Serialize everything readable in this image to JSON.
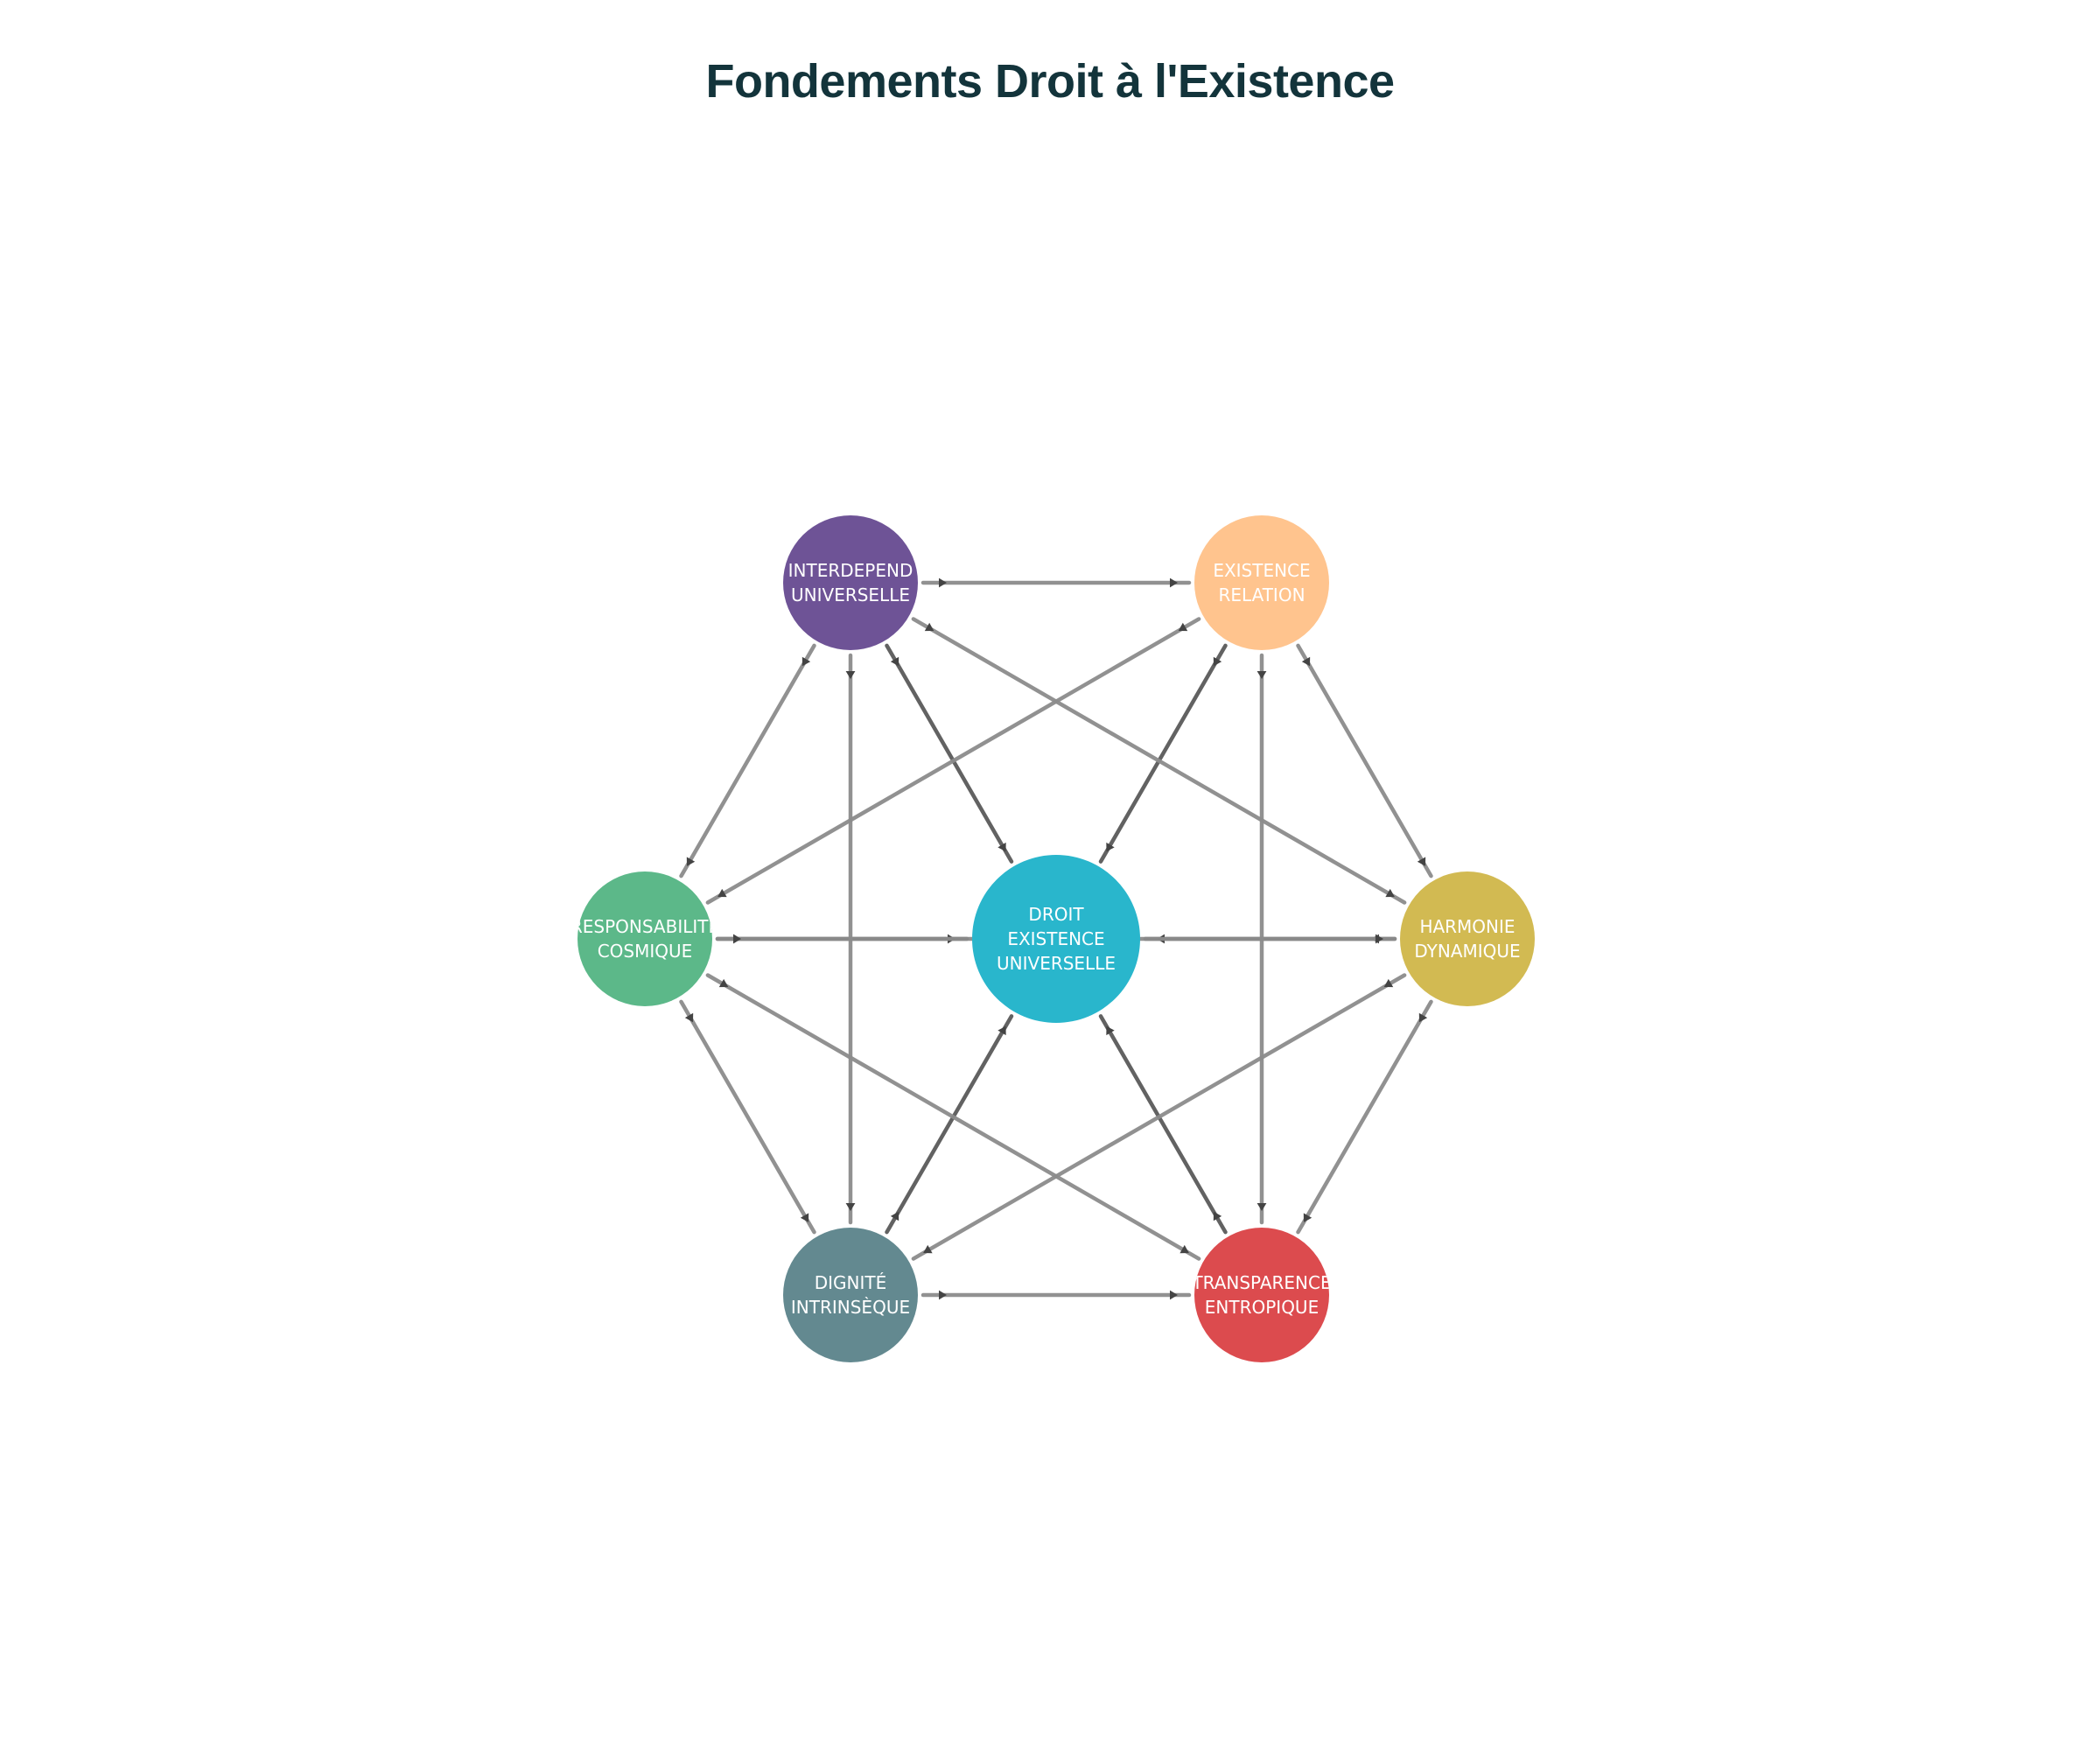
{
  "title": "Fondements Droit à l'Existence",
  "center": {
    "id": "center",
    "lines": [
      "DROIT",
      "EXISTENCE",
      "UNIVERSELLE"
    ],
    "color": "#29b6cc"
  },
  "nodes": [
    {
      "id": "interdep",
      "lines": [
        "INTERDEPEND",
        "UNIVERSELLE"
      ],
      "color": "#6e5396"
    },
    {
      "id": "existence",
      "lines": [
        "EXISTENCE",
        "RELATION"
      ],
      "color": "#ffc48e"
    },
    {
      "id": "harmonie",
      "lines": [
        "HARMONIE",
        "DYNAMIQUE"
      ],
      "color": "#d2ba52"
    },
    {
      "id": "transparence",
      "lines": [
        "TRANSPARENCE",
        "ENTROPIQUE"
      ],
      "color": "#dc4b4e"
    },
    {
      "id": "dignite",
      "lines": [
        "DIGNITÉ",
        "INTRINSÈQUE"
      ],
      "color": "#638990"
    },
    {
      "id": "responsabilite",
      "lines": [
        "RESPONSABILITÉ",
        "COSMIQUE"
      ],
      "color": "#5cb889"
    }
  ],
  "edges": [
    [
      "interdep",
      "center"
    ],
    [
      "existence",
      "center"
    ],
    [
      "harmonie",
      "center"
    ],
    [
      "transparence",
      "center"
    ],
    [
      "dignite",
      "center"
    ],
    [
      "responsabilite",
      "center"
    ],
    [
      "interdep",
      "existence"
    ],
    [
      "existence",
      "harmonie"
    ],
    [
      "harmonie",
      "transparence"
    ],
    [
      "dignite",
      "transparence"
    ],
    [
      "responsabilite",
      "dignite"
    ],
    [
      "interdep",
      "responsabilite"
    ],
    [
      "interdep",
      "harmonie"
    ],
    [
      "interdep",
      "dignite"
    ],
    [
      "existence",
      "responsabilite"
    ],
    [
      "existence",
      "transparence"
    ],
    [
      "harmonie",
      "dignite"
    ],
    [
      "responsabilite",
      "transparence"
    ],
    [
      "responsabilite",
      "harmonie"
    ]
  ]
}
